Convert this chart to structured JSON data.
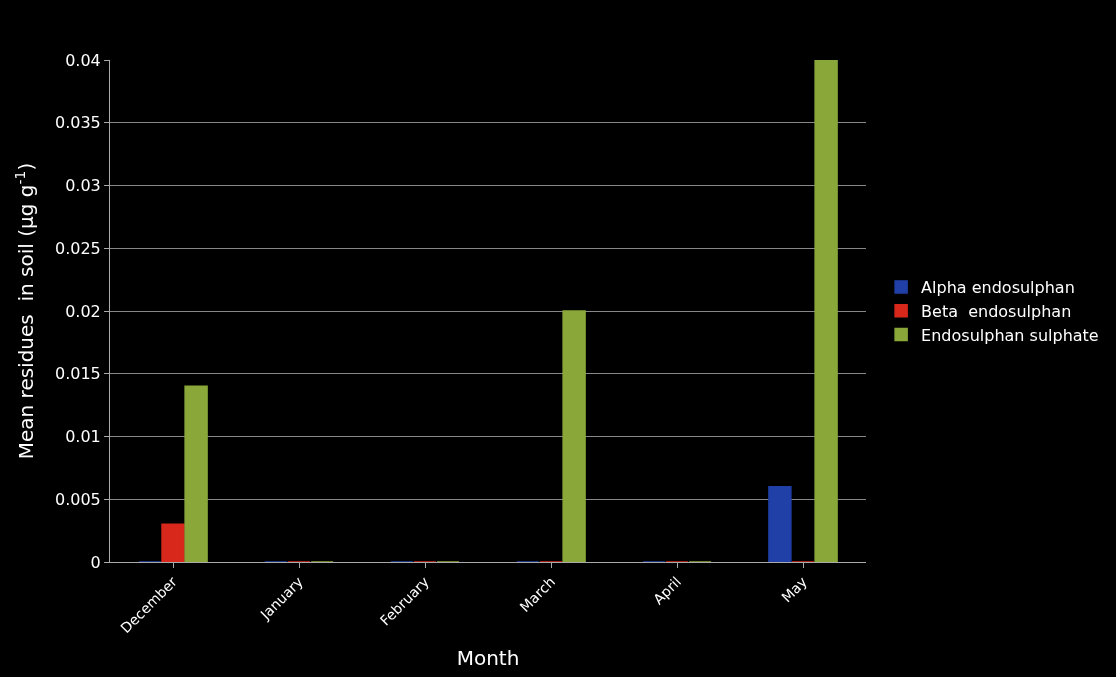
{
  "chart_data": {
    "type": "bar",
    "xlabel": "Month",
    "ylabel": "Mean residues  in soil (µg g$^{-1}$)",
    "categories": [
      "December",
      "January",
      "February",
      "March",
      "April",
      "May"
    ],
    "series": [
      {
        "name": "Alpha endosulphan",
        "color": "#2040a8",
        "values": [
          0,
          0,
          0,
          0,
          0,
          0.006
        ]
      },
      {
        "name": "Beta  endosulphan",
        "color": "#d8281c",
        "values": [
          0.003,
          0,
          0,
          0,
          0,
          0
        ]
      },
      {
        "name": "Endosulphan sulphate",
        "color": "#8aa83a",
        "values": [
          0.014,
          0,
          0,
          0.02,
          0,
          0.04
        ]
      }
    ],
    "ylim": [
      0,
      0.04
    ],
    "yticks": [
      0,
      0.005,
      0.01,
      0.015,
      0.02,
      0.025,
      0.03,
      0.035,
      0.04
    ],
    "grid": "y",
    "legend": "right"
  }
}
